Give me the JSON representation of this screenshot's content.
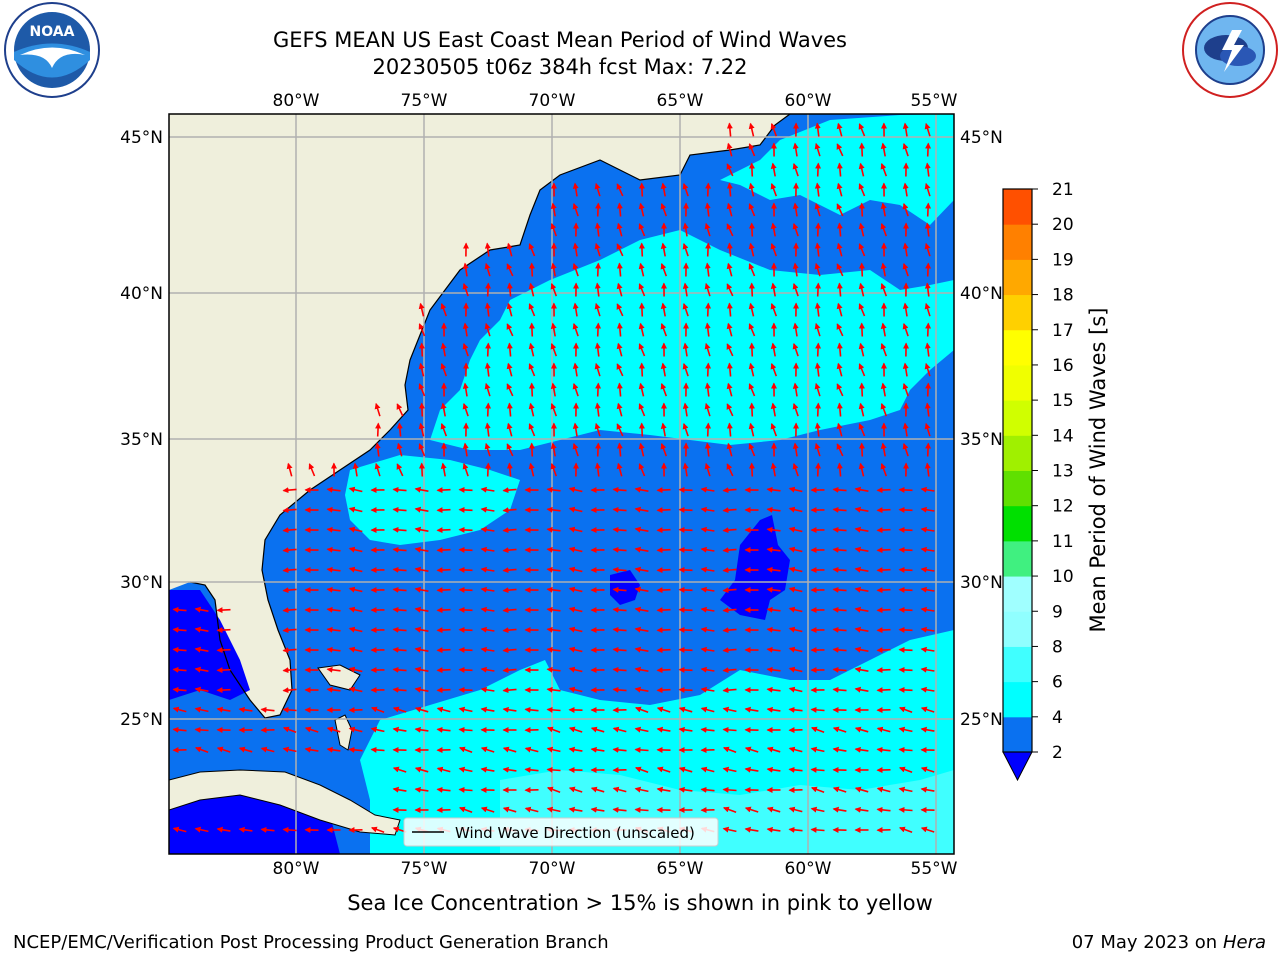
{
  "header": {
    "title_line1": "GEFS MEAN US East Coast Mean Period of Wind Waves",
    "title_line2": "20230505 t06z 384h fcst   Max: 7.22"
  },
  "logos": {
    "left": "noaa-logo-icon",
    "right": "national-weather-service-logo-icon",
    "left_text": "NOAA",
    "left_ring_text": "NATIONAL OCEANIC AND ATMOSPHERIC ADMINISTRATION · U.S. DEPARTMENT OF COMMERCE",
    "right_ring_text": "NATIONAL WEATHER SERVICE"
  },
  "map": {
    "lon_ticks": [
      "80°W",
      "75°W",
      "70°W",
      "65°W",
      "60°W",
      "55°W"
    ],
    "lat_ticks": [
      "45°N",
      "40°N",
      "35°N",
      "30°N",
      "25°N"
    ],
    "legend_label": "Wind Wave Direction (unscaled)",
    "colors": {
      "land": "#efefdc",
      "ocean_low": "#0a71f0",
      "ocean_mid": "#00ffff",
      "ocean_light": "#40ffff",
      "ocean_min": "#0000ff",
      "arrow": "#ff0000",
      "grid": "#b0b0b0"
    }
  },
  "colorbar": {
    "label": "Mean Period of Wind Waves [s]",
    "ticks": [
      "2",
      "4",
      "6",
      "8",
      "9",
      "10",
      "11",
      "12",
      "13",
      "14",
      "15",
      "16",
      "17",
      "18",
      "19",
      "20",
      "21"
    ],
    "colors": [
      "#0a71f0",
      "#00ffff",
      "#40ffff",
      "#90ffff",
      "#a0ffff",
      "#40f080",
      "#00e000",
      "#60e000",
      "#a0f000",
      "#d0ff00",
      "#f0ff00",
      "#ffff00",
      "#ffd000",
      "#ffa800",
      "#ff8000",
      "#ff5000",
      "#ff2800",
      "#ff0000"
    ],
    "under_color": "#0000ff"
  },
  "footer": {
    "sea_ice_note": "Sea Ice Concentration > 15% is shown in pink to yellow",
    "credit": "NCEP/EMC/Verification Post Processing Product Generation Branch",
    "date_prefix": "07 May 2023 on",
    "machine": "Hera"
  }
}
